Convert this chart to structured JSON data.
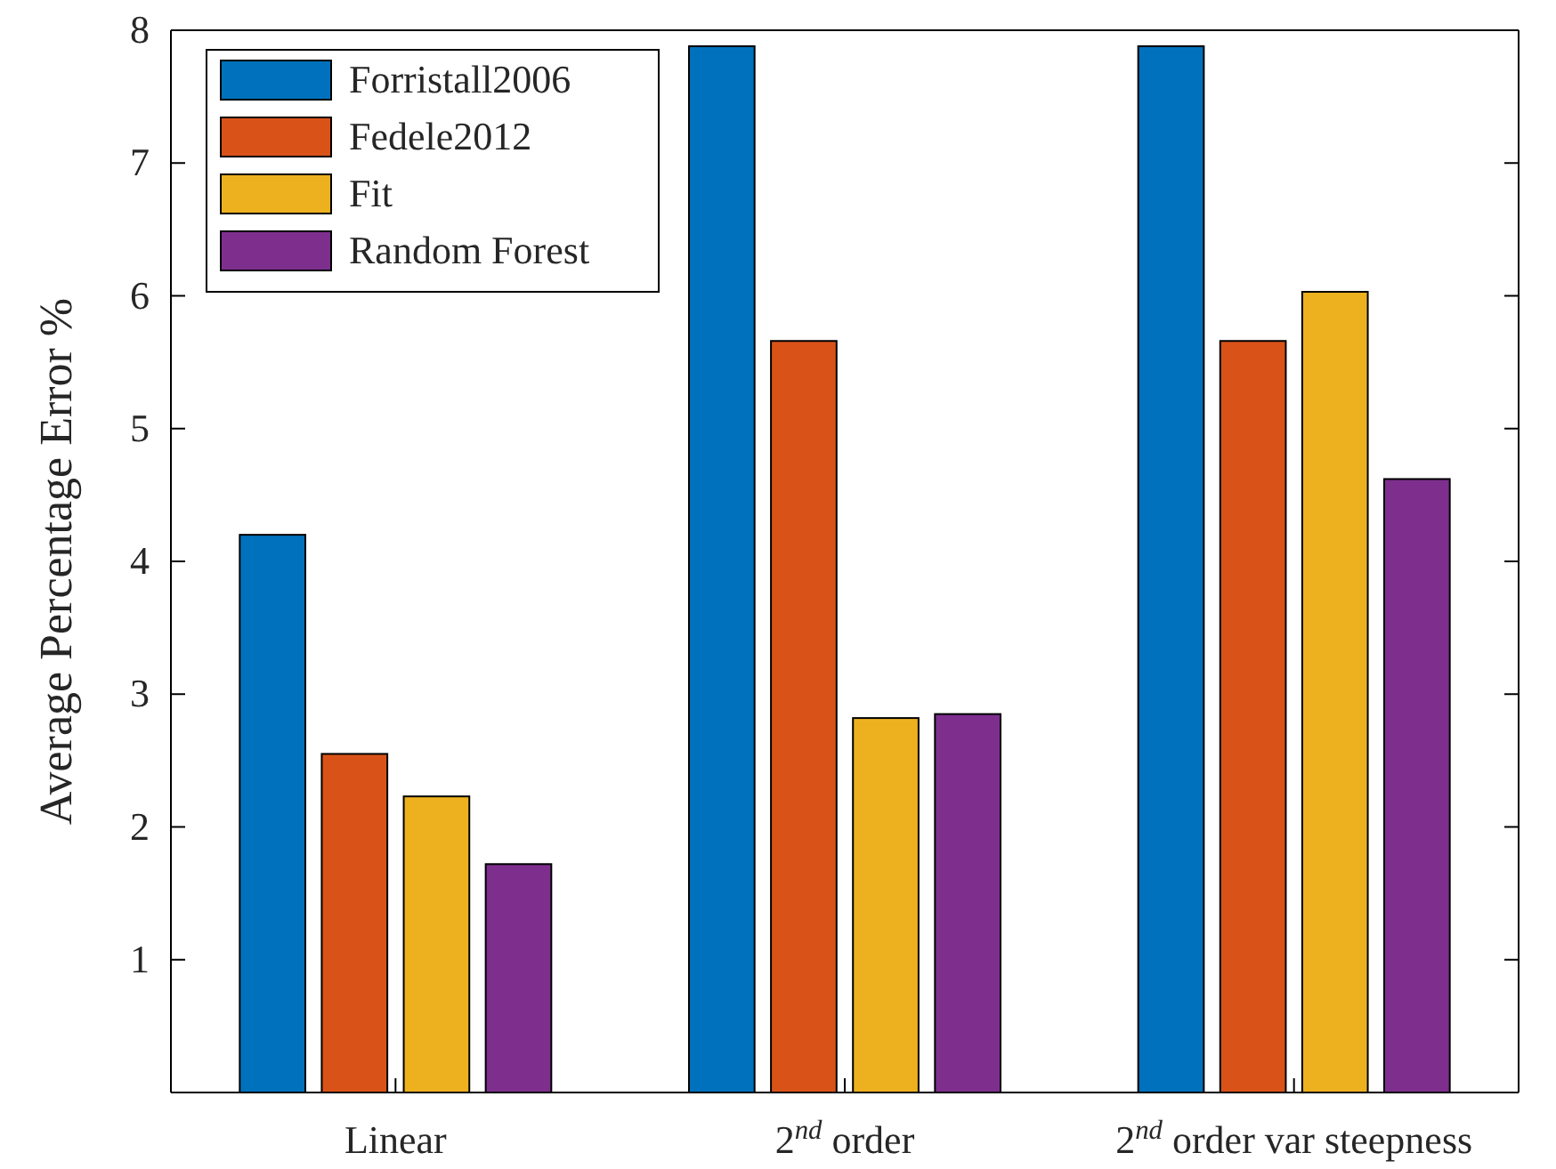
{
  "chart_data": {
    "type": "bar",
    "ylabel": "Average Percentage Error %",
    "categories": [
      "Linear",
      "2$^{nd}$ order",
      "2$^{nd}$ order var steepness"
    ],
    "series": [
      {
        "name": "Forristall2006",
        "color": "#0072bd",
        "values": [
          4.2,
          7.88,
          7.88
        ]
      },
      {
        "name": "Fedele2012",
        "color": "#d95319",
        "values": [
          2.55,
          5.66,
          5.66
        ]
      },
      {
        "name": "Fit",
        "color": "#edb120",
        "values": [
          2.23,
          2.82,
          6.03
        ]
      },
      {
        "name": "Random Forest",
        "color": "#7e2f8e",
        "values": [
          1.72,
          2.85,
          4.62
        ]
      }
    ],
    "ylim": [
      0,
      8
    ],
    "yticks": [
      1,
      2,
      3,
      4,
      5,
      6,
      7,
      8
    ],
    "legend": "top left",
    "grid": false
  }
}
